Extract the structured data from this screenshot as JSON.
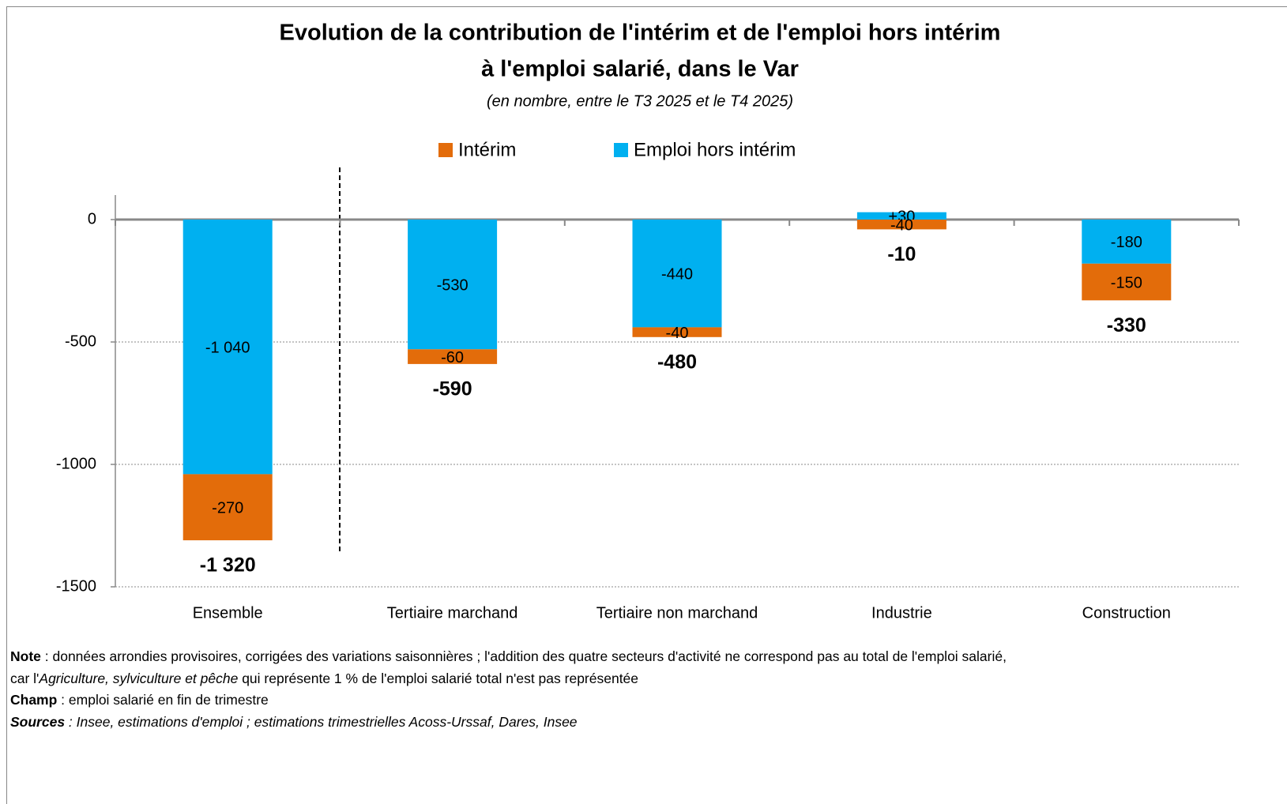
{
  "chart_data": {
    "type": "bar",
    "stacked": true,
    "title": [
      "Evolution de la contribution de l'intérim et de l'emploi hors intérim",
      "à l'emploi salarié, dans le Var"
    ],
    "subtitle": "(en nombre, entre le T3 2025 et le T4 2025)",
    "categories": [
      "Ensemble",
      "Tertiaire marchand",
      "Tertiaire non marchand",
      "Industrie",
      "Construction"
    ],
    "series": [
      {
        "name": "Intérim",
        "color": "#e36c0a",
        "values": [
          -270,
          -60,
          -40,
          -40,
          -150
        ],
        "value_labels": [
          "-270",
          "-60",
          "-40",
          "-40",
          "-150"
        ]
      },
      {
        "name": "Emploi hors intérim",
        "color": "#00b0f0",
        "values": [
          -1040,
          -530,
          -440,
          30,
          -180
        ],
        "value_labels": [
          "-1 040",
          "-530",
          "-440",
          "+30",
          "-180"
        ]
      }
    ],
    "totals": [
      -1320,
      -590,
      -480,
      -10,
      -330
    ],
    "total_labels": [
      "-1 320",
      "-590",
      "-480",
      "-10",
      "-330"
    ],
    "ylim": [
      -1500,
      100
    ],
    "yticks": [
      0,
      -500,
      -1000,
      -1500
    ],
    "negative_tick_color": "#ff0000",
    "grid": true,
    "legend": "top"
  },
  "footer": {
    "note_label": "Note",
    "note_text": " : données arrondies provisoires, corrigées des variations saisonnières ; l'addition des quatre secteurs d'activité ne correspond pas au total de l'emploi salarié,",
    "note_text2a": "car l'",
    "note_italic": "Agriculture, sylviculture et pêche",
    "note_text2b": " qui représente 1 % de l'emploi salarié total n'est pas représentée",
    "champ_label": "Champ",
    "champ_text": " : emploi salarié en fin de trimestre",
    "sources_label": "Sources",
    "sources_text": " : Insee, estimations d'emploi ; estimations trimestrielles Acoss-Urssaf, Dares, Insee"
  }
}
